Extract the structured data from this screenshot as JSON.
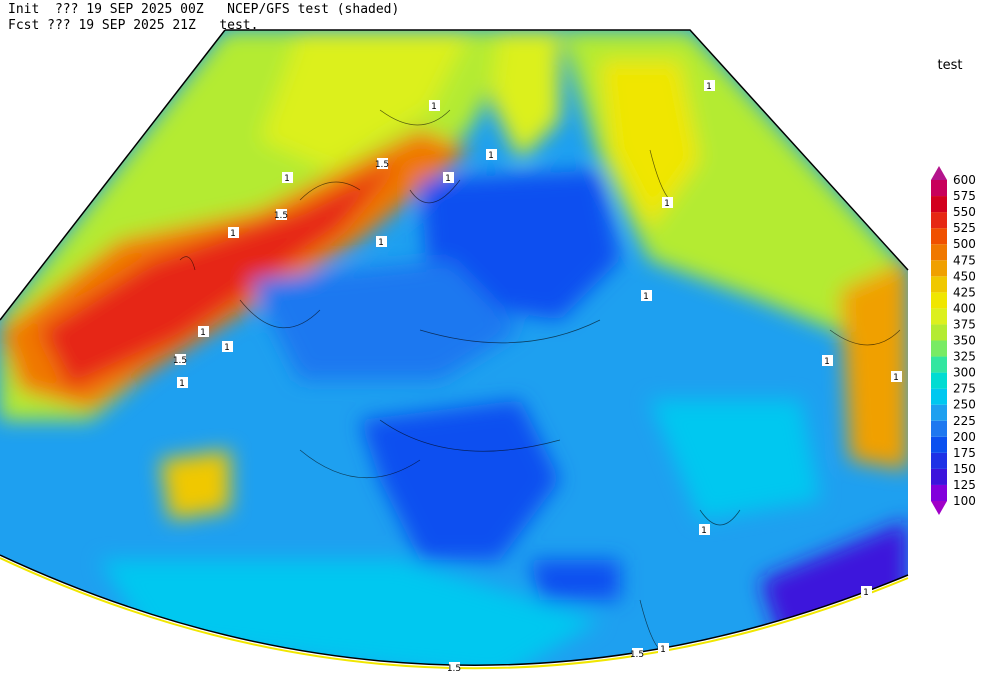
{
  "header": {
    "line1": "Init  ??? 19 SEP 2025 00Z   NCEP/GFS test (shaded)",
    "line2": "Fcst ??? 19 SEP 2025 21Z   test."
  },
  "colorbar": {
    "title": "test",
    "levels": [
      100,
      125,
      150,
      175,
      200,
      225,
      250,
      275,
      300,
      325,
      350,
      375,
      400,
      425,
      450,
      475,
      500,
      525,
      550,
      575,
      600
    ],
    "colors": [
      "#a000c8",
      "#8200dc",
      "#3c14dc",
      "#1e32e6",
      "#0a50f0",
      "#1e78f0",
      "#1ea0f0",
      "#00c8f0",
      "#00dcd2",
      "#32e6a0",
      "#78eb64",
      "#b4eb32",
      "#dcf01e",
      "#f0e600",
      "#f0c800",
      "#f0a000",
      "#f07800",
      "#f05000",
      "#e62814",
      "#d2001e",
      "#c8005a",
      "#b4148c"
    ]
  },
  "map": {
    "contour_labels": [
      "1",
      "1",
      "1",
      "1.5",
      "1",
      "1.5",
      "1",
      "1",
      "1",
      "1",
      "1",
      "1.5",
      "1",
      "1",
      "1",
      "1",
      "1",
      "1",
      "1",
      "1.5",
      "1",
      "1.5"
    ]
  }
}
